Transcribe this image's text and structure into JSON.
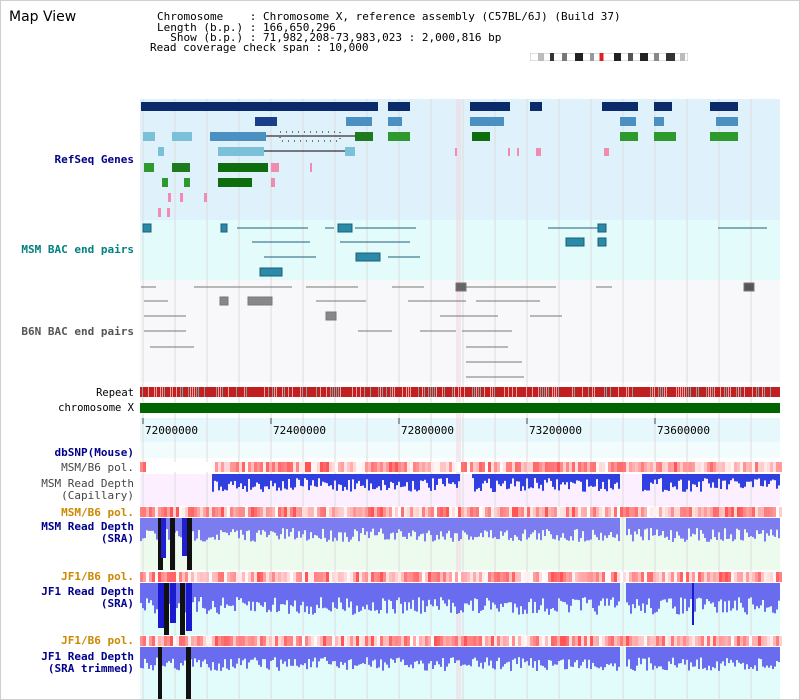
{
  "map_title": "Map View",
  "info": {
    "chromosome": "Chromosome    : Chromosome X, reference assembly (C57BL/6J) (Build 37)",
    "length": "Length (b.p.) : 166,650,296",
    "show": "  Show (b.p.) : 71,982,208-73,983,023 : 2,000,816 bp",
    "coverage": "Read coverage check span : 10,000"
  },
  "tracks": {
    "refseq": "RefSeq Genes",
    "msm_bac": "MSM BAC end pairs",
    "b6n_bac": "B6N BAC end pairs",
    "repeat": "Repeat",
    "chromosome": "chromosome X",
    "dbsnp": "dbSNP(Mouse)",
    "msm_b6_pol_1": "MSM/B6 pol.",
    "msm_depth_cap_1": "MSM Read Depth",
    "msm_depth_cap_2": "(Capillary)",
    "msm_b6_pol_2": "MSM/B6 pol.",
    "msm_depth_sra_1": "MSM Read Depth",
    "msm_depth_sra_2": "(SRA)",
    "jf1_b6_pol_1": "JF1/B6 pol.",
    "jf1_depth_sra_1": "JF1 Read Depth",
    "jf1_depth_sra_2": "(SRA)",
    "jf1_b6_pol_2": "JF1/B6 pol.",
    "jf1_depth_trim_1": "JF1 Read Depth",
    "jf1_depth_trim_2": "(SRA trimmed)"
  },
  "axis": {
    "ticks": [
      "72000000",
      "72400000",
      "72800000",
      "73200000",
      "73600000"
    ]
  },
  "colors": {
    "dark_blue_label": "#00008b",
    "teal_label": "#008080",
    "orange_label": "#cc8800",
    "refseq_bg": "#dff2fb",
    "bac_bg": "#e4fbfb",
    "b6n_bg": "#f8f8fb",
    "chromosome_bar": "#006400",
    "depth_blue": "#6a6cf0"
  }
}
